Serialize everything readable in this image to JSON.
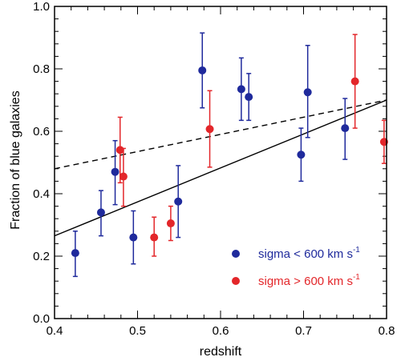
{
  "chart_data": {
    "type": "scatter",
    "title": "",
    "xlabel": "redshift",
    "ylabel": "Fraction of blue galaxies",
    "xlim": [
      0.4,
      0.8
    ],
    "ylim": [
      0.0,
      1.0
    ],
    "xticks": [
      "0.4",
      "0.5",
      "0.6",
      "0.7",
      "0.8"
    ],
    "yticks": [
      "0.0",
      "0.2",
      "0.4",
      "0.6",
      "0.8",
      "1.0"
    ],
    "legend_position": "bottom-right",
    "series": [
      {
        "name": "sigma < 600 km s",
        "name_superscript": "-1",
        "color": "#1f2a9c",
        "points": [
          {
            "x": 0.425,
            "y": 0.21,
            "lo": 0.135,
            "hi": 0.28
          },
          {
            "x": 0.456,
            "y": 0.34,
            "lo": 0.265,
            "hi": 0.41
          },
          {
            "x": 0.473,
            "y": 0.47,
            "lo": 0.365,
            "hi": 0.57
          },
          {
            "x": 0.495,
            "y": 0.26,
            "lo": 0.175,
            "hi": 0.345
          },
          {
            "x": 0.549,
            "y": 0.375,
            "lo": 0.26,
            "hi": 0.49
          },
          {
            "x": 0.578,
            "y": 0.795,
            "lo": 0.675,
            "hi": 0.915
          },
          {
            "x": 0.625,
            "y": 0.735,
            "lo": 0.635,
            "hi": 0.835
          },
          {
            "x": 0.634,
            "y": 0.71,
            "lo": 0.635,
            "hi": 0.785
          },
          {
            "x": 0.697,
            "y": 0.525,
            "lo": 0.44,
            "hi": 0.61
          },
          {
            "x": 0.705,
            "y": 0.725,
            "lo": 0.58,
            "hi": 0.875
          },
          {
            "x": 0.75,
            "y": 0.61,
            "lo": 0.51,
            "hi": 0.705
          }
        ]
      },
      {
        "name": "sigma > 600 km s",
        "name_superscript": "-1",
        "color": "#e3262a",
        "points": [
          {
            "x": 0.479,
            "y": 0.54,
            "lo": 0.435,
            "hi": 0.645
          },
          {
            "x": 0.483,
            "y": 0.455,
            "lo": 0.36,
            "hi": 0.545
          },
          {
            "x": 0.52,
            "y": 0.26,
            "lo": 0.2,
            "hi": 0.325
          },
          {
            "x": 0.54,
            "y": 0.305,
            "lo": 0.25,
            "hi": 0.36
          },
          {
            "x": 0.587,
            "y": 0.607,
            "lo": 0.485,
            "hi": 0.73
          },
          {
            "x": 0.762,
            "y": 0.76,
            "lo": 0.61,
            "hi": 0.91
          },
          {
            "x": 0.797,
            "y": 0.566,
            "lo": 0.497,
            "hi": 0.635
          }
        ]
      }
    ],
    "lines": [
      {
        "style": "solid",
        "x": [
          0.4,
          0.8
        ],
        "y": [
          0.265,
          0.7
        ]
      },
      {
        "style": "dashed",
        "x": [
          0.4,
          0.8
        ],
        "y": [
          0.48,
          0.7
        ]
      }
    ]
  }
}
